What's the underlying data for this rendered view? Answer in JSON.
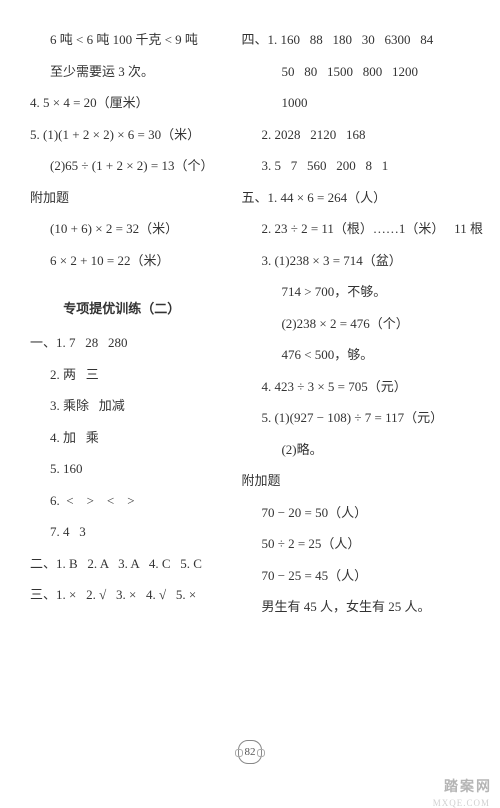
{
  "page_number": "82",
  "watermark_main": "踏案网",
  "watermark_sub": "MXQE.COM",
  "divider_color": "#333333",
  "text_color": "#333333",
  "bg_color": "#ffffff",
  "font_size_pt": 10,
  "left": {
    "l1": "6 吨 < 6 吨 100 千克 < 9 吨",
    "l2": "至少需要运 3 次。",
    "l3": "4. 5 × 4 = 20（厘米）",
    "l4": "5. (1)(1 + 2 × 2) × 6 = 30（米）",
    "l5": "(2)65 ÷ (1 + 2 × 2) = 13（个）",
    "l6": "附加题",
    "l7": "(10 + 6) × 2 = 32（米）",
    "l8": "6 × 2 + 10 = 22（米）",
    "section_title": "专项提优训练（二）",
    "s1": "一、1. 7   28   280",
    "s2": "2. 两   三",
    "s3": "3. 乘除   加减",
    "s4": "4. 加   乘",
    "s5": "5. 160",
    "s6": "6.  <    >    <    >",
    "s7": "7. 4   3",
    "s8": "二、1. B   2. A   3. A   4. C   5. C",
    "s9": "三、1. ×   2. √   3. ×   4. √   5. ×"
  },
  "right": {
    "r1": "四、1. 160   88   180   30   6300   84",
    "r2": "50   80   1500   800   1200",
    "r3": "1000",
    "r4": "2. 2028   2120   168",
    "r5": "3. 5   7   560   200   8   1",
    "r6": "五、1. 44 × 6 = 264（人）",
    "r7": "2. 23 ÷ 2 = 11（根）……1（米）   11 根",
    "r8": "3. (1)238 × 3 = 714（盆）",
    "r9": "714 > 700，不够。",
    "r10": "(2)238 × 2 = 476（个）",
    "r11": "476 < 500，够。",
    "r12": "4. 423 ÷ 3 × 5 = 705（元）",
    "r13": "5. (1)(927 − 108) ÷ 7 = 117（元）",
    "r14": "(2)略。",
    "r15": "附加题",
    "r16": "70 − 20 = 50（人）",
    "r17": "50 ÷ 2 = 25（人）",
    "r18": "70 − 25 = 45（人）",
    "r19": "男生有 45 人，女生有 25 人。"
  }
}
